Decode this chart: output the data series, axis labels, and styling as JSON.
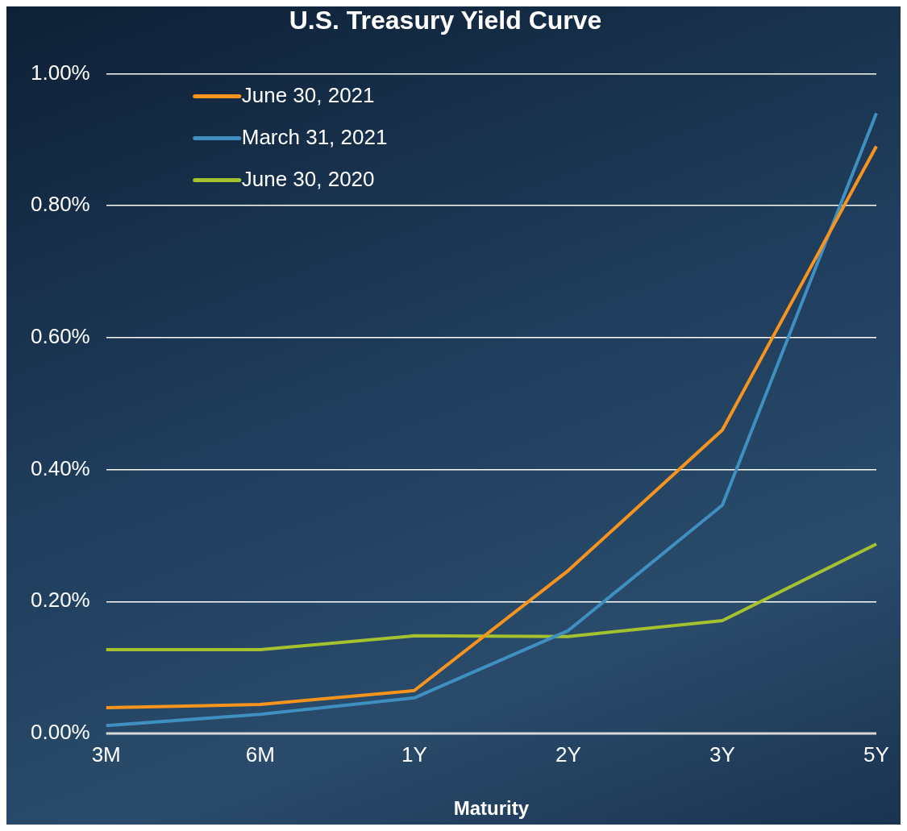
{
  "chart_data": {
    "type": "line",
    "title": "U.S. Treasury Yield Curve",
    "xlabel": "Maturity",
    "categories": [
      "3M",
      "6M",
      "1Y",
      "2Y",
      "3Y",
      "5Y"
    ],
    "ylim": [
      0,
      1
    ],
    "yticks": [
      {
        "value": 0,
        "label": "0.00%"
      },
      {
        "value": 0.2,
        "label": "0.20%"
      },
      {
        "value": 0.4,
        "label": "0.40%"
      },
      {
        "value": 0.6,
        "label": "0.60%"
      },
      {
        "value": 0.8,
        "label": "0.80%"
      },
      {
        "value": 1,
        "label": "1.00%"
      }
    ],
    "grid": "y",
    "legend": "top left",
    "marker": "none",
    "line_style": "solid",
    "series": [
      {
        "name": "June 30, 2021",
        "color": "#f7941d",
        "values": [
          0.039,
          0.044,
          0.065,
          0.247,
          0.46,
          0.89
        ]
      },
      {
        "name": "March 31, 2021",
        "color": "#3f8fc0",
        "values": [
          0.012,
          0.029,
          0.054,
          0.156,
          0.346,
          0.94
        ]
      },
      {
        "name": "June 30, 2020",
        "color": "#a4c12f",
        "values": [
          0.127,
          0.127,
          0.148,
          0.147,
          0.171,
          0.287
        ]
      }
    ]
  }
}
